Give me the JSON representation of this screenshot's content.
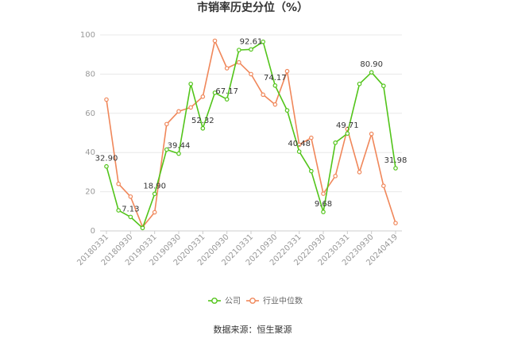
{
  "chart_data": {
    "type": "line",
    "title": "市销率历史分位（%）",
    "ylim": [
      0,
      100
    ],
    "yticks": [
      "0",
      "20",
      "40",
      "60",
      "80",
      "100"
    ],
    "xtick_labels": [
      "20180331",
      "20180930",
      "20190331",
      "20190930",
      "20200331",
      "20200930",
      "20210331",
      "20210930",
      "20220331",
      "20220930",
      "20230331",
      "20230930",
      "20240419"
    ],
    "grid": "horizontal",
    "legend_position": "bottom",
    "series": [
      {
        "name": "公司",
        "color": "#52c41a",
        "values": [
          32.9,
          10.5,
          7.13,
          1.5,
          18.9,
          41.5,
          39.44,
          75.0,
          52.32,
          70.5,
          67.17,
          92.3,
          92.61,
          96.5,
          74.17,
          61.5,
          40.48,
          30.5,
          9.68,
          45.0,
          49.71,
          75.0,
          80.9,
          74.0,
          31.98
        ]
      },
      {
        "name": "行业中位数",
        "color": "#f0875a",
        "values": [
          67.0,
          24.0,
          17.5,
          2.0,
          9.5,
          54.5,
          61.0,
          63.0,
          68.5,
          97.0,
          83.0,
          86.0,
          80.0,
          69.5,
          64.5,
          81.5,
          44.0,
          47.5,
          19.0,
          28.0,
          52.0,
          30.0,
          49.5,
          23.0,
          4.0
        ]
      }
    ],
    "data_labels": [
      {
        "index": 0,
        "text": "32.90"
      },
      {
        "index": 2,
        "text": "7.13"
      },
      {
        "index": 4,
        "text": "18.90"
      },
      {
        "index": 6,
        "text": "39.44"
      },
      {
        "index": 8,
        "text": "52.32"
      },
      {
        "index": 10,
        "text": "67.17"
      },
      {
        "index": 12,
        "text": "92.61"
      },
      {
        "index": 14,
        "text": "74.17"
      },
      {
        "index": 16,
        "text": "40.48"
      },
      {
        "index": 18,
        "text": "9.68"
      },
      {
        "index": 20,
        "text": "49.71"
      },
      {
        "index": 22,
        "text": "80.90"
      },
      {
        "index": 24,
        "text": "31.98"
      }
    ]
  },
  "source": "数据来源：恒生聚源"
}
